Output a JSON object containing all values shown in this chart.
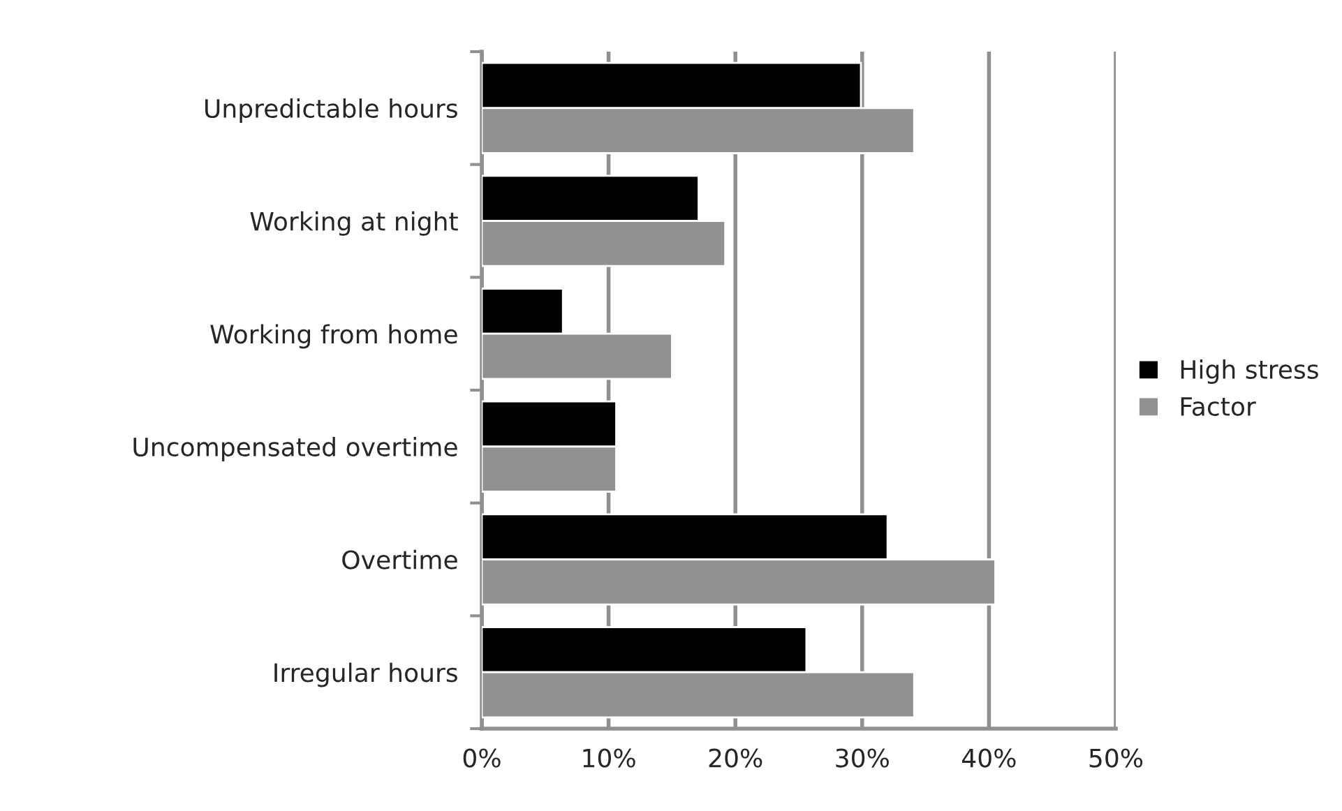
{
  "chart_data": {
    "type": "bar",
    "orientation": "horizontal",
    "categories": [
      "Unpredictable hours",
      "Working at night",
      "Working from home",
      "Uncompensated overtime",
      "Overtime",
      "Irregular hours"
    ],
    "series": [
      {
        "name": "High stress",
        "color": "#000000",
        "values": [
          29.9,
          17.1,
          6.4,
          10.6,
          32.0,
          25.6
        ]
      },
      {
        "name": "Factor",
        "color": "#919191",
        "values": [
          34.1,
          19.2,
          15.0,
          10.6,
          40.5,
          34.1
        ]
      }
    ],
    "xlim": [
      0,
      50
    ],
    "xticks": [
      {
        "value": 0,
        "label": "0%"
      },
      {
        "value": 10,
        "label": "10%"
      },
      {
        "value": 20,
        "label": "20%"
      },
      {
        "value": 30,
        "label": "30%"
      },
      {
        "value": 40,
        "label": "40%"
      },
      {
        "value": 50,
        "label": "50%"
      }
    ],
    "grid": "x",
    "legend": "right"
  }
}
